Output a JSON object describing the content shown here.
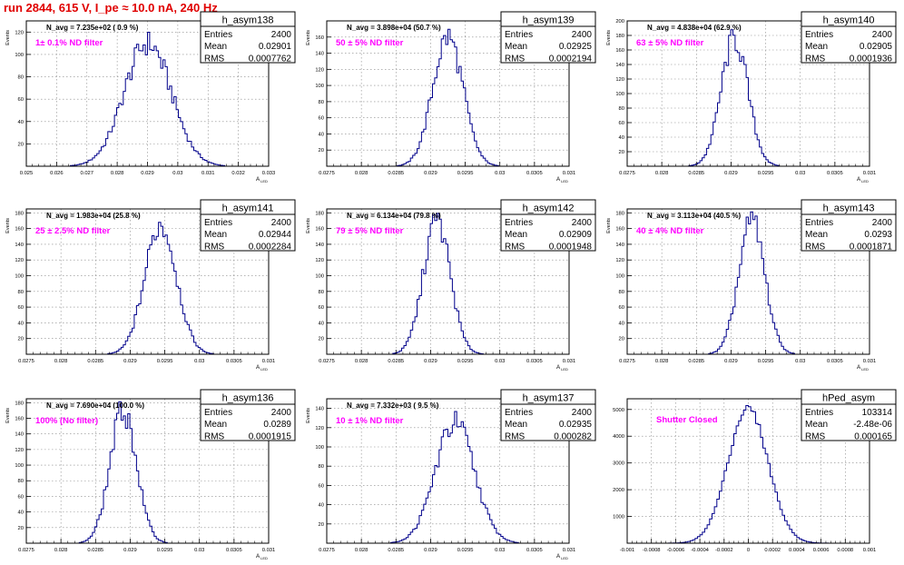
{
  "title": "run 2844,   615 V, I_pe ≈ 10.0 nA, 240 Hz",
  "colors": {
    "title": "#e00000",
    "histogram": "#00008b",
    "annotation": "#ff00ff",
    "frame": "#000000",
    "grid": "#888888"
  },
  "chart_data": [
    {
      "type": "histogram",
      "name": "h_asym138",
      "stats": {
        "entries": "2400",
        "mean": "0.02901",
        "rms": "0.0007762"
      },
      "navg": "N_avg = 7.235e+02  ( 0.9 %)",
      "label": "1± 0.1% ND filter",
      "ylabel": "Events",
      "xlabel": "A_{LED}",
      "xlim": [
        0.025,
        0.033
      ],
      "ylim": [
        0,
        130
      ],
      "xticks": [
        "0.025",
        "0.026",
        "0.027",
        "0.028",
        "0.029",
        "0.03",
        "0.031",
        "0.032",
        "0.033"
      ],
      "yticks": [
        "20",
        "40",
        "60",
        "80",
        "100",
        "120"
      ],
      "mean": 0.02901,
      "sigma": 0.0007762,
      "peak": 110,
      "grid": true
    },
    {
      "type": "histogram",
      "name": "h_asym139",
      "stats": {
        "entries": "2400",
        "mean": "0.02925",
        "rms": "0.0002194"
      },
      "navg": "N_avg = 3.898e+04 (50.7 %)",
      "label": "50 ± 5% ND filter",
      "ylabel": "Events",
      "xlabel": "A_{LED}",
      "xlim": [
        0.0275,
        0.031
      ],
      "ylim": [
        0,
        180
      ],
      "xticks": [
        "0.0275",
        "0.028",
        "0.0285",
        "0.029",
        "0.0295",
        "0.03",
        "0.0305",
        "0.031"
      ],
      "yticks": [
        "20",
        "40",
        "60",
        "80",
        "100",
        "120",
        "140",
        "160"
      ],
      "mean": 0.02925,
      "sigma": 0.0002194,
      "peak": 160,
      "grid": true
    },
    {
      "type": "histogram",
      "name": "h_asym140",
      "stats": {
        "entries": "2400",
        "mean": "0.02905",
        "rms": "0.0001936"
      },
      "navg": "N_avg = 4.838e+04 (62.9 %)",
      "label": "63 ± 5% ND filter",
      "ylabel": "Events",
      "xlabel": "A_{LED}",
      "xlim": [
        0.0275,
        0.031
      ],
      "ylim": [
        0,
        200
      ],
      "xticks": [
        "0.0275",
        "0.028",
        "0.0285",
        "0.029",
        "0.0295",
        "0.03",
        "0.0305",
        "0.031"
      ],
      "yticks": [
        "20",
        "40",
        "60",
        "80",
        "100",
        "120",
        "140",
        "160",
        "180",
        "200"
      ],
      "mean": 0.02905,
      "sigma": 0.0001936,
      "peak": 175,
      "grid": true
    },
    {
      "type": "histogram",
      "name": "h_asym141",
      "stats": {
        "entries": "2400",
        "mean": "0.02944",
        "rms": "0.0002284"
      },
      "navg": "N_avg = 1.983e+04 (25.8 %)",
      "label": "25 ± 2.5% ND filter",
      "ylabel": "Events",
      "xlabel": "A_{LED}",
      "xlim": [
        0.0275,
        0.031
      ],
      "ylim": [
        0,
        185
      ],
      "xticks": [
        "0.0275",
        "0.028",
        "0.0285",
        "0.029",
        "0.0295",
        "0.03",
        "0.0305",
        "0.031"
      ],
      "yticks": [
        "20",
        "40",
        "60",
        "80",
        "100",
        "120",
        "140",
        "160",
        "180"
      ],
      "mean": 0.02944,
      "sigma": 0.0002284,
      "peak": 165,
      "grid": true
    },
    {
      "type": "histogram",
      "name": "h_asym142",
      "stats": {
        "entries": "2400",
        "mean": "0.02909",
        "rms": "0.0001948"
      },
      "navg": "N_avg = 6.134e+04 (79.8 %)",
      "label": "79 ± 5% ND filter",
      "ylabel": "Events",
      "xlabel": "A_{LED}",
      "xlim": [
        0.0275,
        0.031
      ],
      "ylim": [
        0,
        185
      ],
      "xticks": [
        "0.0275",
        "0.028",
        "0.0285",
        "0.029",
        "0.0295",
        "0.03",
        "0.0305",
        "0.031"
      ],
      "yticks": [
        "20",
        "40",
        "60",
        "80",
        "100",
        "120",
        "140",
        "160",
        "180"
      ],
      "mean": 0.02909,
      "sigma": 0.0001948,
      "peak": 170,
      "grid": true
    },
    {
      "type": "histogram",
      "name": "h_asym143",
      "stats": {
        "entries": "2400",
        "mean": "0.0293",
        "rms": "0.0001871"
      },
      "navg": "N_avg = 3.113e+04 (40.5 %)",
      "label": "40 ± 4% ND filter",
      "ylabel": "Events",
      "xlabel": "A_{LED}",
      "xlim": [
        0.0275,
        0.031
      ],
      "ylim": [
        0,
        185
      ],
      "xticks": [
        "0.0275",
        "0.028",
        "0.0285",
        "0.029",
        "0.0295",
        "0.03",
        "0.0305",
        "0.031"
      ],
      "yticks": [
        "20",
        "40",
        "60",
        "80",
        "100",
        "120",
        "140",
        "160",
        "180"
      ],
      "mean": 0.0293,
      "sigma": 0.0001871,
      "peak": 170,
      "grid": true
    },
    {
      "type": "histogram",
      "name": "h_asym136",
      "stats": {
        "entries": "2400",
        "mean": "0.0289",
        "rms": "0.0001915"
      },
      "navg": "N_avg = 7.690e+04 (100.0 %)",
      "label": "100% (No filter)",
      "ylabel": "Events",
      "xlabel": "A_{LED}",
      "xlim": [
        0.0275,
        0.031
      ],
      "ylim": [
        0,
        185
      ],
      "xticks": [
        "0.0275",
        "0.028",
        "0.0285",
        "0.029",
        "0.0295",
        "0.03",
        "0.0305",
        "0.031"
      ],
      "yticks": [
        "20",
        "40",
        "60",
        "80",
        "100",
        "120",
        "140",
        "160",
        "180"
      ],
      "mean": 0.0289,
      "sigma": 0.0001915,
      "peak": 170,
      "grid": true
    },
    {
      "type": "histogram",
      "name": "h_asym137",
      "stats": {
        "entries": "2400",
        "mean": "0.02935",
        "rms": "0.000282"
      },
      "navg": "N_avg = 7.332e+03 ( 9.5 %)",
      "label": "10 ± 1% ND filter",
      "ylabel": "Events",
      "xlabel": "A_{LED}",
      "xlim": [
        0.0275,
        0.031
      ],
      "ylim": [
        0,
        150
      ],
      "xticks": [
        "0.0275",
        "0.028",
        "0.0285",
        "0.029",
        "0.0295",
        "0.03",
        "0.0305",
        "0.031"
      ],
      "yticks": [
        "20",
        "40",
        "60",
        "80",
        "100",
        "120",
        "140"
      ],
      "mean": 0.02935,
      "sigma": 0.000282,
      "peak": 125,
      "grid": true
    },
    {
      "type": "histogram",
      "name": "hPed_asym",
      "stats": {
        "entries": "103314",
        "mean": "-2.48e-06",
        "rms": "0.000165"
      },
      "navg": "",
      "label": "Shutter Closed",
      "ylabel": "",
      "xlabel": "",
      "xlim": [
        -0.001,
        0.001
      ],
      "ylim": [
        0,
        5400
      ],
      "xticks": [
        "-0.001",
        "-0.0008",
        "-0.0006",
        "-0.0004",
        "-0.0002",
        "0",
        "0.0002",
        "0.0004",
        "0.0006",
        "0.0008",
        "0.001"
      ],
      "yticks": [
        "1000",
        "2000",
        "3000",
        "4000",
        "5000"
      ],
      "mean": -2.48e-06,
      "sigma": 0.000165,
      "peak": 5050,
      "grid": true
    }
  ]
}
